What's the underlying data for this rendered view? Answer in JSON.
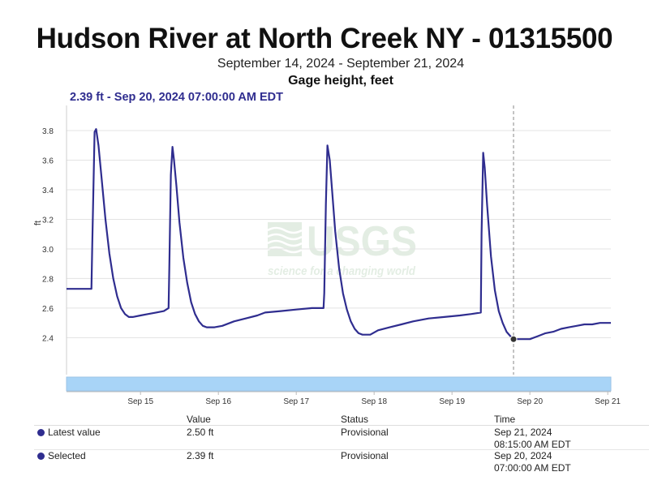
{
  "header": {
    "title": "Hudson River at North Creek NY - 01315500",
    "date_range": "September 14, 2024 - September 21, 2024",
    "parameter": "Gage height, feet",
    "selected_point_label": "2.39 ft - Sep 20, 2024 07:00:00 AM EDT"
  },
  "watermark": {
    "logo": "USGS",
    "tagline": "science for a changing world"
  },
  "chart_data": {
    "type": "line",
    "ylabel": "ft",
    "xlabel": "",
    "ylim": [
      2.15,
      3.97
    ],
    "y_ticks": [
      2.4,
      2.6,
      2.8,
      3.0,
      3.2,
      3.4,
      3.6,
      3.8
    ],
    "x_ticks": [
      "Sep 15",
      "Sep 16",
      "Sep 17",
      "Sep 18",
      "Sep 19",
      "Sep 20",
      "Sep 21"
    ],
    "x_unit": "days since Sep 14 00:00",
    "xlim": [
      0.55,
      7.54
    ],
    "grid": true,
    "color": "#2f2d8f",
    "series": [
      {
        "x": [
          0.55,
          0.87,
          0.88,
          0.91,
          0.93,
          0.96,
          1.0,
          1.05,
          1.1,
          1.15,
          1.2,
          1.25,
          1.3,
          1.35,
          1.4,
          1.5,
          1.6,
          1.7,
          1.8,
          1.86,
          1.87,
          1.89,
          1.91,
          1.93,
          1.96,
          2.0,
          2.05,
          2.1,
          2.15,
          2.2,
          2.25,
          2.3,
          2.35,
          2.45,
          2.55,
          2.7,
          2.85,
          3.0,
          3.1,
          3.3,
          3.5,
          3.7,
          3.85,
          3.86,
          3.88,
          3.9,
          3.93,
          3.96,
          4.0,
          4.05,
          4.1,
          4.15,
          4.2,
          4.25,
          4.3,
          4.35,
          4.45,
          4.55,
          4.7,
          4.85,
          5.0,
          5.2,
          5.4,
          5.6,
          5.75,
          5.87,
          5.88,
          5.9,
          5.92,
          5.95,
          6.0,
          6.05,
          6.1,
          6.15,
          6.2,
          6.25,
          6.3,
          6.4,
          6.5,
          6.6,
          6.7,
          6.8,
          6.9,
          7.0,
          7.1,
          7.2,
          7.3,
          7.4,
          7.54
        ],
        "y": [
          2.73,
          2.73,
          3.02,
          3.79,
          3.81,
          3.7,
          3.48,
          3.2,
          2.97,
          2.8,
          2.68,
          2.6,
          2.56,
          2.54,
          2.54,
          2.55,
          2.56,
          2.57,
          2.58,
          2.6,
          2.87,
          3.5,
          3.69,
          3.6,
          3.43,
          3.18,
          2.94,
          2.77,
          2.64,
          2.56,
          2.51,
          2.48,
          2.47,
          2.47,
          2.48,
          2.51,
          2.53,
          2.55,
          2.57,
          2.58,
          2.59,
          2.6,
          2.6,
          2.7,
          3.3,
          3.7,
          3.6,
          3.4,
          3.12,
          2.87,
          2.7,
          2.59,
          2.51,
          2.46,
          2.43,
          2.42,
          2.42,
          2.45,
          2.47,
          2.49,
          2.51,
          2.53,
          2.54,
          2.55,
          2.56,
          2.57,
          3.1,
          3.65,
          3.55,
          3.3,
          2.95,
          2.72,
          2.58,
          2.5,
          2.44,
          2.41,
          2.39,
          2.39,
          2.39,
          2.41,
          2.43,
          2.44,
          2.46,
          2.47,
          2.48,
          2.49,
          2.49,
          2.5,
          2.5
        ]
      }
    ],
    "selected_point": {
      "x": 6.29,
      "y": 2.39
    }
  },
  "table": {
    "headers": [
      "Value",
      "Status",
      "Time"
    ],
    "rows": [
      {
        "label": "Latest value",
        "value": "2.50 ft",
        "status": "Provisional",
        "time_date": "Sep 21, 2024",
        "time_clock": "08:15:00 AM EDT"
      },
      {
        "label": "Selected",
        "value": "2.39 ft",
        "status": "Provisional",
        "time_date": "Sep 20, 2024",
        "time_clock": "07:00:00 AM EDT"
      }
    ]
  }
}
